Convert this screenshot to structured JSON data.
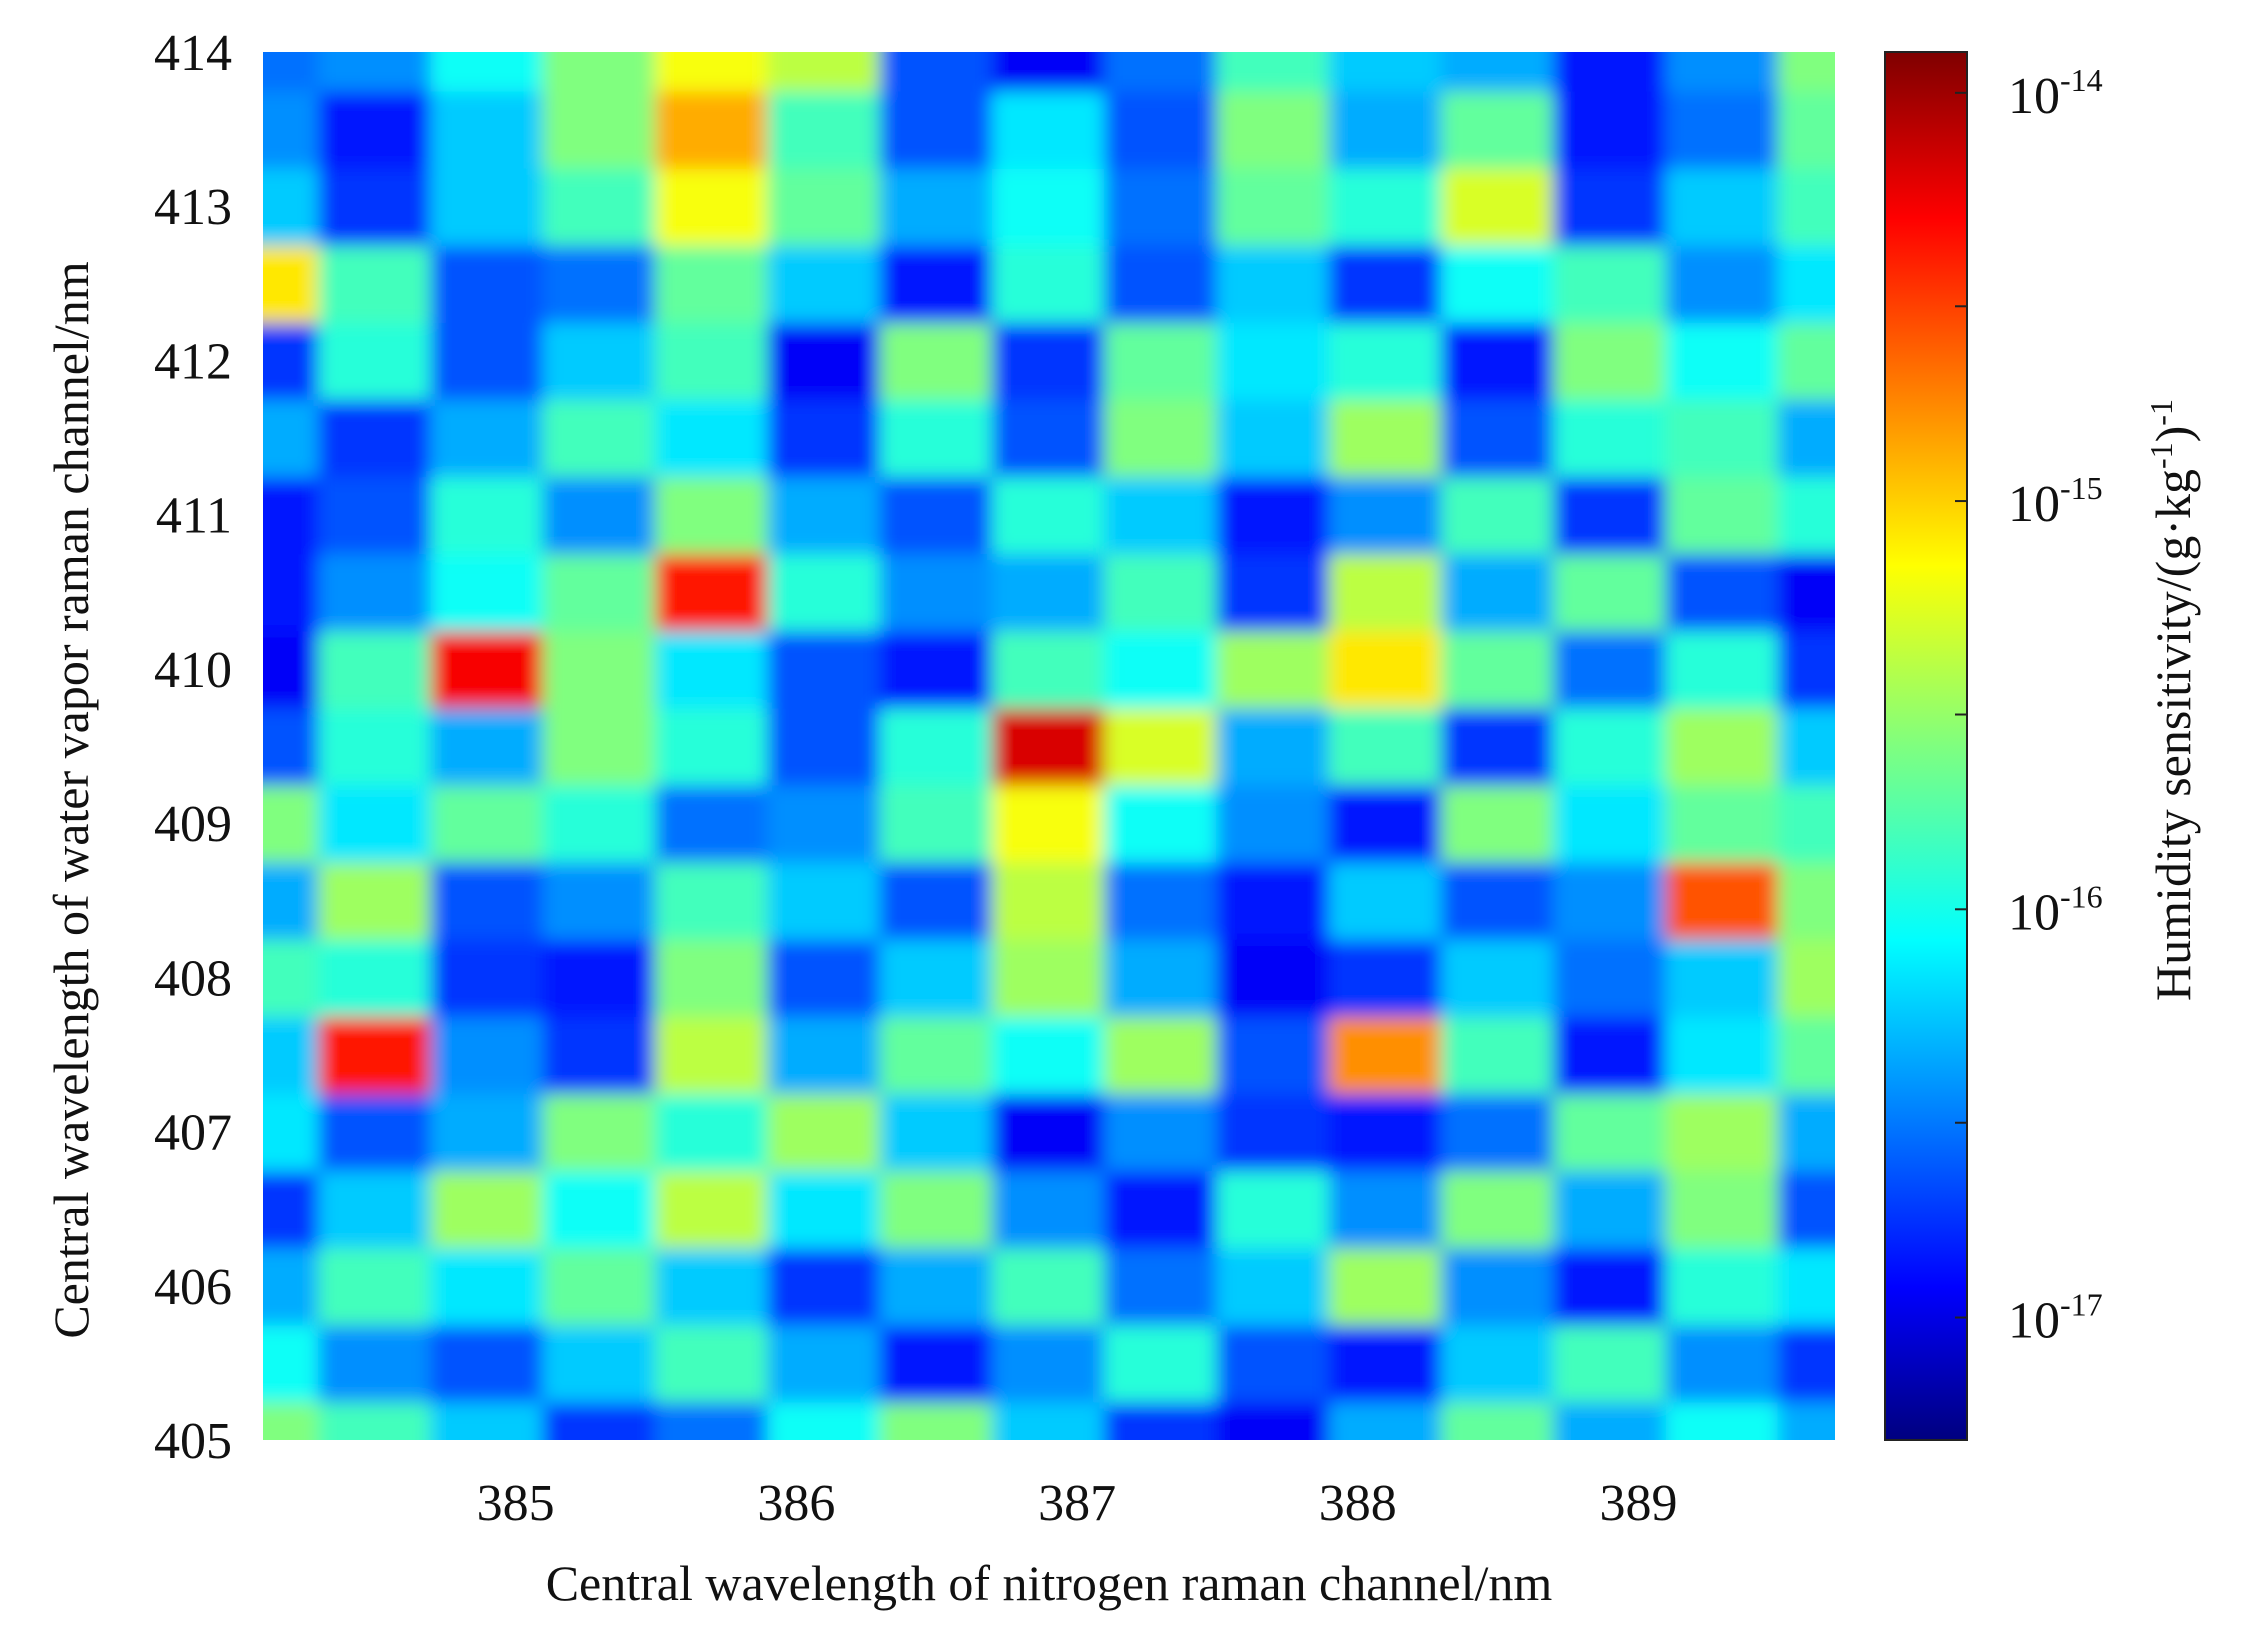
{
  "chart_data": {
    "type": "heatmap",
    "title": "",
    "xlabel": "Central wavelength of nitrogen raman channel/nm",
    "ylabel": "Central wavelength of water vapor raman channel/nm",
    "xlim": [
      384.1,
      389.7
    ],
    "ylim": [
      405,
      414
    ],
    "x_ticks": [
      385,
      386,
      387,
      388,
      389
    ],
    "y_ticks": [
      405,
      406,
      407,
      408,
      409,
      410,
      411,
      412,
      413,
      414
    ],
    "x": [
      384.1,
      384.5,
      384.9,
      385.3,
      385.7,
      386.1,
      386.5,
      386.9,
      387.3,
      387.7,
      388.1,
      388.5,
      388.9,
      389.3,
      389.7
    ],
    "y": [
      405,
      405.5,
      406,
      406.5,
      407,
      407.5,
      408,
      408.5,
      409,
      409.5,
      410,
      410.5,
      411,
      411.5,
      412,
      412.5,
      413,
      413.5,
      414
    ],
    "z_log10": [
      [
        -15.6,
        -15.8,
        -16.2,
        -16.7,
        -16.5,
        -16.0,
        -15.6,
        -16.2,
        -16.7,
        -16.9,
        -16.3,
        -15.7,
        -16.3,
        -16.0,
        -16.3
      ],
      [
        -16.0,
        -16.4,
        -16.6,
        -16.2,
        -15.8,
        -16.3,
        -16.8,
        -16.4,
        -15.9,
        -16.6,
        -16.8,
        -16.2,
        -15.8,
        -16.4,
        -16.7
      ],
      [
        -16.3,
        -15.8,
        -16.1,
        -15.7,
        -16.2,
        -16.7,
        -16.3,
        -15.8,
        -16.5,
        -16.2,
        -15.5,
        -16.4,
        -16.8,
        -15.9,
        -16.1
      ],
      [
        -16.7,
        -16.2,
        -15.5,
        -16.0,
        -15.4,
        -16.1,
        -15.6,
        -16.4,
        -16.8,
        -15.9,
        -16.4,
        -15.6,
        -16.3,
        -15.6,
        -16.6
      ],
      [
        -16.1,
        -16.6,
        -16.3,
        -15.6,
        -15.9,
        -15.5,
        -16.2,
        -16.9,
        -16.4,
        -16.7,
        -16.8,
        -16.5,
        -15.7,
        -15.5,
        -16.3
      ],
      [
        -16.2,
        -14.4,
        -16.4,
        -16.7,
        -15.4,
        -16.3,
        -15.7,
        -16.0,
        -15.5,
        -16.6,
        -14.8,
        -15.8,
        -16.8,
        -16.1,
        -15.7
      ],
      [
        -15.8,
        -15.9,
        -16.7,
        -16.8,
        -15.6,
        -16.6,
        -16.2,
        -15.5,
        -16.3,
        -16.9,
        -16.7,
        -16.2,
        -16.5,
        -16.2,
        -15.5
      ],
      [
        -16.3,
        -15.5,
        -16.6,
        -16.4,
        -15.8,
        -16.2,
        -16.6,
        -15.4,
        -16.5,
        -16.8,
        -16.2,
        -16.6,
        -16.4,
        -14.6,
        -15.6
      ],
      [
        -15.6,
        -16.1,
        -15.7,
        -15.9,
        -16.5,
        -16.4,
        -15.8,
        -15.2,
        -16.0,
        -16.4,
        -16.8,
        -15.6,
        -16.1,
        -15.7,
        -15.8
      ],
      [
        -16.6,
        -15.9,
        -16.3,
        -15.6,
        -15.9,
        -16.6,
        -15.9,
        -14.2,
        -15.3,
        -16.3,
        -15.8,
        -16.7,
        -15.9,
        -15.5,
        -16.2
      ],
      [
        -16.9,
        -15.8,
        -14.3,
        -15.6,
        -16.1,
        -16.6,
        -16.8,
        -15.8,
        -16.0,
        -15.5,
        -15.1,
        -15.7,
        -16.5,
        -15.9,
        -16.7
      ],
      [
        -16.8,
        -16.4,
        -16.0,
        -15.7,
        -14.4,
        -15.9,
        -16.4,
        -16.3,
        -15.8,
        -16.7,
        -15.4,
        -16.3,
        -15.7,
        -16.6,
        -16.9
      ],
      [
        -16.8,
        -16.6,
        -15.9,
        -16.4,
        -15.6,
        -16.3,
        -16.6,
        -15.9,
        -16.2,
        -16.8,
        -16.4,
        -15.8,
        -16.7,
        -15.7,
        -15.9
      ],
      [
        -16.3,
        -16.7,
        -16.3,
        -15.8,
        -16.1,
        -16.7,
        -15.9,
        -16.6,
        -15.6,
        -16.2,
        -15.5,
        -16.6,
        -15.9,
        -15.8,
        -16.3
      ],
      [
        -16.7,
        -15.9,
        -16.6,
        -16.2,
        -15.8,
        -16.9,
        -15.6,
        -16.7,
        -15.7,
        -16.1,
        -15.9,
        -16.8,
        -15.6,
        -16.0,
        -15.7
      ],
      [
        -15.1,
        -15.8,
        -16.6,
        -16.5,
        -15.7,
        -16.2,
        -16.8,
        -15.9,
        -16.6,
        -16.2,
        -16.7,
        -16.0,
        -15.8,
        -16.4,
        -16.1
      ],
      [
        -16.2,
        -16.7,
        -16.2,
        -15.8,
        -15.2,
        -15.7,
        -16.3,
        -16.0,
        -16.5,
        -15.7,
        -15.9,
        -15.3,
        -16.7,
        -16.2,
        -15.8
      ],
      [
        -16.4,
        -16.8,
        -16.2,
        -15.6,
        -14.9,
        -15.8,
        -16.6,
        -16.1,
        -16.6,
        -15.6,
        -16.3,
        -15.7,
        -16.8,
        -16.5,
        -15.7
      ],
      [
        -16.5,
        -16.4,
        -16.0,
        -15.6,
        -15.2,
        -15.4,
        -16.6,
        -16.9,
        -16.5,
        -15.8,
        -16.2,
        -16.3,
        -16.8,
        -16.4,
        -15.6
      ]
    ],
    "colorbar": {
      "label": "Humidity sensitivity/(g·kg",
      "label_exp_inner": "-1",
      "label_close": ")",
      "label_exp_outer": "-1",
      "scale": "log",
      "range_log10": [
        -17.3,
        -13.9
      ],
      "colormap": "jet",
      "ticks": [
        {
          "base": "10",
          "exp": "-14",
          "log10": -14
        },
        {
          "base": "10",
          "exp": "-15",
          "log10": -15
        },
        {
          "base": "10",
          "exp": "-16",
          "log10": -16
        },
        {
          "base": "10",
          "exp": "-17",
          "log10": -17
        }
      ]
    },
    "grid": false,
    "legend": "colorbar-right"
  }
}
